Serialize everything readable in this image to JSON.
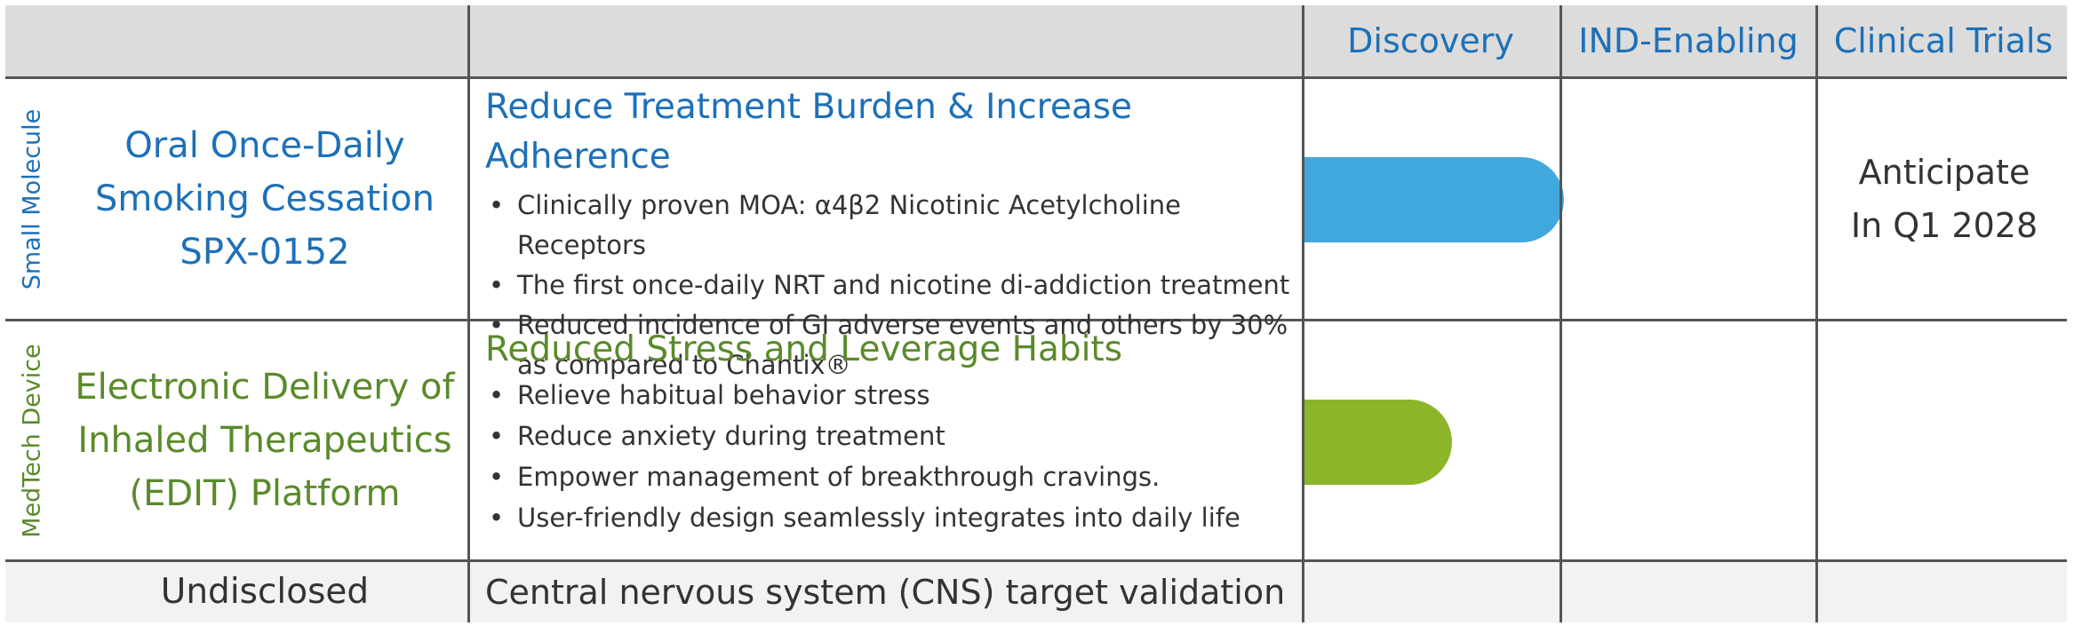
{
  "header": {
    "stages": [
      "Discovery",
      "IND-Enabling",
      "Clinical Trials"
    ]
  },
  "rows": [
    {
      "category": "Small Molecule",
      "program_lines": [
        "Oral Once-Daily",
        "Smoking Cessation",
        "SPX-0152"
      ],
      "title": "Reduce Treatment Burden & Increase Adherence",
      "bullets": [
        "Clinically proven MOA: α4β2 Nicotinic Acetylcholine Receptors",
        "The first once-daily NRT and nicotine di-addiction treatment",
        "Reduced incidence of GI adverse events and others by 30% as compared to Chantix®"
      ],
      "progress": 1.0,
      "note_lines": [
        "Anticipate",
        "In Q1 2028"
      ]
    },
    {
      "category": "MedTech Device",
      "program_lines": [
        "Electronic Delivery of",
        "Inhaled Therapeutics",
        "(EDIT) Platform"
      ],
      "title": "Reduced Stress and Leverage Habits",
      "bullets": [
        "Relieve habitual behavior stress",
        "Reduce anxiety during treatment",
        "Empower management of breakthrough cravings.",
        "User-friendly design seamlessly integrates into daily life"
      ],
      "progress": 0.57
    },
    {
      "program_lines": [
        "Undisclosed"
      ],
      "title": "Central nervous system (CNS) target validation"
    }
  ],
  "colors": {
    "blue": "#1d70b8",
    "green": "#5a8a2a",
    "bar_blue": "#41a8de",
    "bar_green": "#8db52a",
    "header_bg": "#dcdcdc"
  }
}
